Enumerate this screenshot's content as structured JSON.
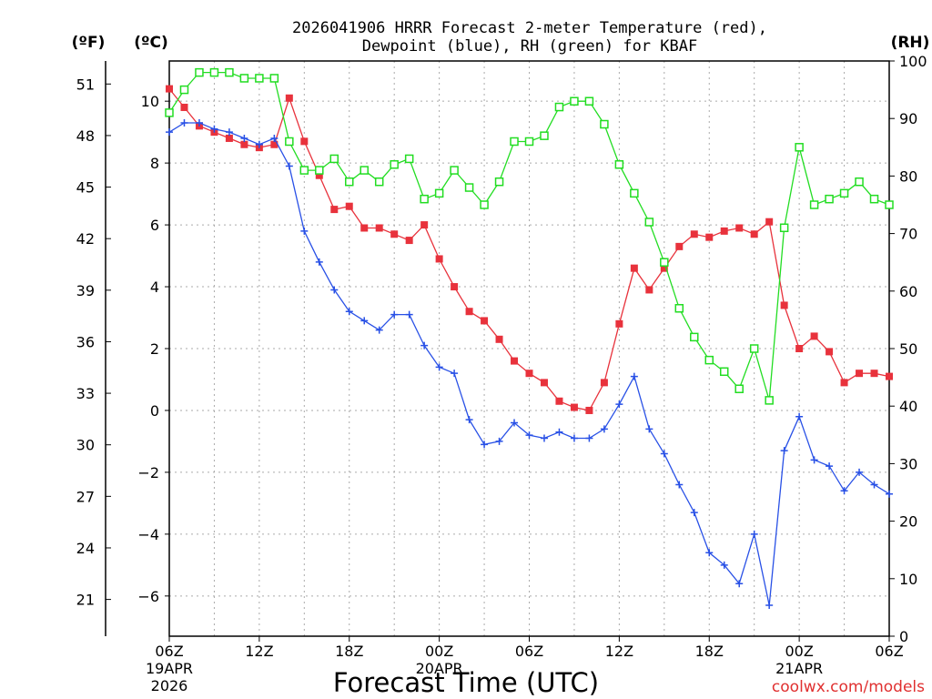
{
  "chart_data": {
    "type": "line",
    "title_line1": "2026041906 HRRR Forecast 2-meter Temperature (red),",
    "title_line2": "Dewpoint (blue), RH (green) for KBAF",
    "xlabel": "Forecast Time (UTC)",
    "credit": "coolwx.com/models",
    "unit_left_f": "(ºF)",
    "unit_left_c": "(ºC)",
    "unit_right": "(RH)",
    "x_range_hours": [
      0,
      48
    ],
    "c_range": [
      -7.3,
      11.3
    ],
    "rh_range": [
      0,
      100
    ],
    "c_ticks": [
      "−6",
      "−4",
      "−2",
      "0",
      "2",
      "4",
      "6",
      "8",
      "10"
    ],
    "f_ticks": [
      "21",
      "24",
      "27",
      "30",
      "33",
      "36",
      "39",
      "42",
      "45",
      "48",
      "51"
    ],
    "rh_ticks": [
      "0",
      "10",
      "20",
      "30",
      "40",
      "50",
      "60",
      "70",
      "80",
      "90",
      "100"
    ],
    "x_ticks": [
      {
        "h": 0,
        "l1": "06Z",
        "l2": "19APR",
        "l3": "2026"
      },
      {
        "h": 6,
        "l1": "12Z",
        "l2": "",
        "l3": ""
      },
      {
        "h": 12,
        "l1": "18Z",
        "l2": "",
        "l3": ""
      },
      {
        "h": 18,
        "l1": "00Z",
        "l2": "20APR",
        "l3": ""
      },
      {
        "h": 24,
        "l1": "06Z",
        "l2": "",
        "l3": ""
      },
      {
        "h": 30,
        "l1": "12Z",
        "l2": "",
        "l3": ""
      },
      {
        "h": 36,
        "l1": "18Z",
        "l2": "",
        "l3": ""
      },
      {
        "h": 42,
        "l1": "00Z",
        "l2": "21APR",
        "l3": ""
      },
      {
        "h": 48,
        "l1": "06Z",
        "l2": "",
        "l3": ""
      }
    ],
    "series": [
      {
        "name": "2-meter Temperature (°C)",
        "axis": "c",
        "color": "#e8323c",
        "marker": "filled-square",
        "values": [
          10.4,
          9.8,
          9.2,
          9.0,
          8.8,
          8.6,
          8.5,
          8.6,
          10.1,
          8.7,
          7.6,
          6.5,
          6.6,
          5.9,
          5.9,
          5.7,
          5.5,
          6.0,
          4.9,
          4.0,
          3.2,
          2.9,
          2.3,
          1.6,
          1.2,
          0.9,
          0.3,
          0.1,
          0.0,
          0.9,
          2.8,
          4.6,
          3.9,
          4.6,
          5.3,
          5.7,
          5.6,
          5.8,
          5.9,
          5.7,
          6.1,
          3.4,
          2.0,
          2.4,
          1.9,
          0.9,
          1.2,
          1.2,
          1.1
        ]
      },
      {
        "name": "Dewpoint (°C)",
        "axis": "c",
        "color": "#2850e6",
        "marker": "plus",
        "values": [
          9.0,
          9.3,
          9.3,
          9.1,
          9.0,
          8.8,
          8.6,
          8.8,
          7.9,
          5.8,
          4.8,
          3.9,
          3.2,
          2.9,
          2.6,
          3.1,
          3.1,
          2.1,
          1.4,
          1.2,
          -0.3,
          -1.1,
          -1.0,
          -0.4,
          -0.8,
          -0.9,
          -0.7,
          -0.9,
          -0.9,
          -0.6,
          0.2,
          1.1,
          -0.6,
          -1.4,
          -2.4,
          -3.3,
          -4.6,
          -5.0,
          -5.6,
          -4.0,
          -6.3,
          -1.3,
          -0.2,
          -1.6,
          -1.8,
          -2.6,
          -2.0,
          -2.4,
          -2.7
        ]
      },
      {
        "name": "RH (%)",
        "axis": "rh",
        "color": "#22dd22",
        "marker": "open-square",
        "values": [
          91,
          95,
          98,
          98,
          98,
          97,
          97,
          97,
          86,
          81,
          81,
          83,
          79,
          81,
          79,
          82,
          83,
          76,
          77,
          81,
          78,
          75,
          79,
          86,
          86,
          87,
          92,
          93,
          93,
          89,
          82,
          77,
          72,
          65,
          57,
          52,
          48,
          46,
          43,
          50,
          41,
          71,
          85,
          75,
          76,
          77,
          79,
          76,
          75
        ]
      }
    ]
  }
}
